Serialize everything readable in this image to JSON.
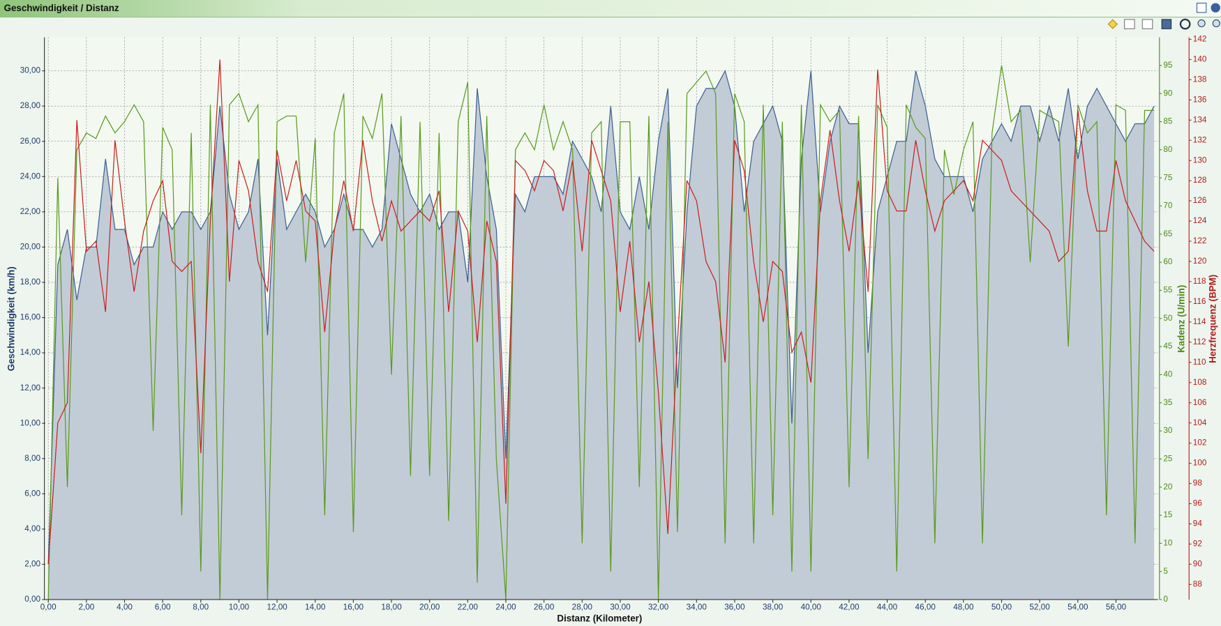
{
  "chart_data": {
    "type": "line",
    "title": "Geschwindigkeit / Distanz",
    "xlabel": "Distanz (Kilometer)",
    "x": [
      0,
      0.5,
      1,
      1.5,
      2,
      2.5,
      3,
      3.5,
      4,
      4.5,
      5,
      5.5,
      6,
      6.5,
      7,
      7.5,
      8,
      8.5,
      9,
      9.5,
      10,
      10.5,
      11,
      11.5,
      12,
      12.5,
      13,
      13.5,
      14,
      14.5,
      15,
      15.5,
      16,
      16.5,
      17,
      17.5,
      18,
      18.5,
      19,
      19.5,
      20,
      20.5,
      21,
      21.5,
      22,
      22.5,
      23,
      23.5,
      24,
      24.5,
      25,
      25.5,
      26,
      26.5,
      27,
      27.5,
      28,
      28.5,
      29,
      29.5,
      30,
      30.5,
      31,
      31.5,
      32,
      32.5,
      33,
      33.5,
      34,
      34.5,
      35,
      35.5,
      36,
      36.5,
      37,
      37.5,
      38,
      38.5,
      39,
      39.5,
      40,
      40.5,
      41,
      41.5,
      42,
      42.5,
      43,
      43.5,
      44,
      44.5,
      45,
      45.5,
      46,
      46.5,
      47,
      47.5,
      48,
      48.5,
      49,
      49.5,
      50,
      50.5,
      51,
      51.5,
      52,
      52.5,
      53,
      53.5,
      54,
      54.5,
      55,
      55.5,
      56,
      56.5,
      57,
      57.5,
      58
    ],
    "xlim": [
      0,
      58.2
    ],
    "ylim": [
      0,
      31.9
    ],
    "y2lim": [
      0,
      100
    ],
    "y3lim": [
      86.5,
      142.2
    ],
    "grid": true,
    "xticks": [
      {
        "value": 0,
        "label": "0,00"
      },
      {
        "value": 2,
        "label": "2,00"
      },
      {
        "value": 4,
        "label": "4,00"
      },
      {
        "value": 6,
        "label": "6,00"
      },
      {
        "value": 8,
        "label": "8,00"
      },
      {
        "value": 10,
        "label": "10,00"
      },
      {
        "value": 12,
        "label": "12,00"
      },
      {
        "value": 14,
        "label": "14,00"
      },
      {
        "value": 16,
        "label": "16,00"
      },
      {
        "value": 18,
        "label": "18,00"
      },
      {
        "value": 20,
        "label": "20,00"
      },
      {
        "value": 22,
        "label": "22,00"
      },
      {
        "value": 24,
        "label": "24,00"
      },
      {
        "value": 26,
        "label": "26,00"
      },
      {
        "value": 28,
        "label": "28,00"
      },
      {
        "value": 30,
        "label": "30,00"
      },
      {
        "value": 32,
        "label": "32,00"
      },
      {
        "value": 34,
        "label": "34,00"
      },
      {
        "value": 36,
        "label": "36,00"
      },
      {
        "value": 38,
        "label": "38,00"
      },
      {
        "value": 40,
        "label": "40,00"
      },
      {
        "value": 42,
        "label": "42,00"
      },
      {
        "value": 44,
        "label": "44,00"
      },
      {
        "value": 46,
        "label": "46,00"
      },
      {
        "value": 48,
        "label": "48,00"
      },
      {
        "value": 50,
        "label": "50,00"
      },
      {
        "value": 52,
        "label": "52,00"
      },
      {
        "value": 54,
        "label": "54,00"
      },
      {
        "value": 56,
        "label": "56,00"
      }
    ],
    "yticks": [
      {
        "value": 0,
        "label": "0,00"
      },
      {
        "value": 2,
        "label": "2,00"
      },
      {
        "value": 4,
        "label": "4,00"
      },
      {
        "value": 6,
        "label": "6,00"
      },
      {
        "value": 8,
        "label": "8,00"
      },
      {
        "value": 10,
        "label": "10,00"
      },
      {
        "value": 12,
        "label": "12,00"
      },
      {
        "value": 14,
        "label": "14,00"
      },
      {
        "value": 16,
        "label": "16,00"
      },
      {
        "value": 18,
        "label": "18,00"
      },
      {
        "value": 20,
        "label": "20,00"
      },
      {
        "value": 22,
        "label": "22,00"
      },
      {
        "value": 24,
        "label": "24,00"
      },
      {
        "value": 26,
        "label": "26,00"
      },
      {
        "value": 28,
        "label": "28,00"
      },
      {
        "value": 30,
        "label": "30,00"
      }
    ],
    "y2ticks": [
      0,
      5,
      10,
      15,
      20,
      25,
      30,
      35,
      40,
      45,
      50,
      55,
      60,
      65,
      70,
      75,
      80,
      85,
      90,
      95
    ],
    "y3ticks": [
      88,
      90,
      92,
      94,
      96,
      98,
      100,
      102,
      104,
      106,
      108,
      110,
      112,
      114,
      116,
      118,
      120,
      122,
      124,
      126,
      128,
      130,
      132,
      134,
      136,
      138,
      140,
      142
    ],
    "series": [
      {
        "name": "Geschwindigkeit (km/h)",
        "color": "#3d5f91",
        "area": true,
        "axis": "y",
        "values": [
          2,
          19,
          21,
          17,
          20,
          20,
          25,
          21,
          21,
          19,
          20,
          20,
          22,
          21,
          22,
          22,
          21,
          22,
          28,
          23,
          21,
          22,
          25,
          15,
          25,
          21,
          22,
          23,
          22,
          20,
          21,
          23,
          21,
          21,
          20,
          21,
          27,
          25,
          23,
          22,
          23,
          21,
          22,
          22,
          18,
          29,
          24,
          21,
          8,
          23,
          22,
          24,
          24,
          24,
          23,
          26,
          25,
          24,
          22,
          28,
          22,
          21,
          24,
          21,
          26,
          29,
          12,
          22,
          28,
          29,
          29,
          30,
          28,
          22,
          26,
          27,
          28,
          26,
          10,
          25,
          30,
          22,
          26,
          28,
          27,
          27,
          14,
          22,
          24,
          26,
          26,
          30,
          28,
          25,
          24,
          24,
          24,
          22,
          25,
          26,
          27,
          26,
          28,
          28,
          26,
          28,
          26,
          29,
          25,
          28,
          29,
          28,
          27,
          26,
          27,
          27,
          28
        ]
      },
      {
        "name": "Kadenz (U/min)",
        "color": "#5a9a1e",
        "axis": "y2",
        "values": [
          0,
          75,
          20,
          80,
          83,
          82,
          86,
          83,
          85,
          88,
          85,
          30,
          84,
          80,
          15,
          83,
          5,
          88,
          0,
          88,
          90,
          85,
          88,
          0,
          85,
          86,
          86,
          60,
          82,
          15,
          83,
          90,
          12,
          86,
          82,
          90,
          40,
          86,
          22,
          85,
          22,
          83,
          14,
          85,
          92,
          3,
          86,
          25,
          0,
          80,
          83,
          80,
          88,
          80,
          85,
          80,
          10,
          83,
          85,
          5,
          85,
          85,
          20,
          86,
          0,
          85,
          12,
          90,
          92,
          94,
          90,
          10,
          90,
          85,
          10,
          88,
          15,
          85,
          5,
          88,
          5,
          88,
          85,
          87,
          20,
          86,
          25,
          88,
          84,
          5,
          88,
          84,
          82,
          10,
          80,
          72,
          80,
          85,
          10,
          83,
          95,
          85,
          87,
          60,
          87,
          86,
          85,
          45,
          88,
          83,
          85,
          15,
          88,
          87,
          10,
          87,
          87
        ]
      },
      {
        "name": "Herzfrequenz (BPM)",
        "color": "#c8201e",
        "axis": "y3",
        "values": [
          90,
          104,
          106,
          134,
          121,
          122,
          115,
          132,
          124,
          117,
          123,
          126,
          128,
          120,
          119,
          120,
          101,
          124,
          140,
          118,
          130,
          127,
          120,
          117,
          131,
          126,
          130,
          125,
          124,
          113,
          123,
          128,
          123,
          132,
          126,
          122,
          126,
          123,
          124,
          125,
          124,
          127,
          115,
          125,
          123,
          112,
          124,
          120,
          96,
          130,
          129,
          127,
          130,
          129,
          125,
          130,
          121,
          132,
          129,
          126,
          115,
          122,
          112,
          118,
          107,
          93,
          112,
          128,
          126,
          120,
          118,
          110,
          132,
          129,
          120,
          114,
          120,
          119,
          111,
          113,
          108,
          126,
          133,
          126,
          121,
          128,
          117,
          139,
          127,
          125,
          125,
          132,
          127,
          123,
          126,
          127,
          128,
          126,
          132,
          131,
          130,
          127,
          126,
          125,
          124,
          123,
          120,
          121,
          135,
          127,
          123,
          123,
          130,
          126,
          124,
          122,
          121
        ]
      }
    ]
  }
}
